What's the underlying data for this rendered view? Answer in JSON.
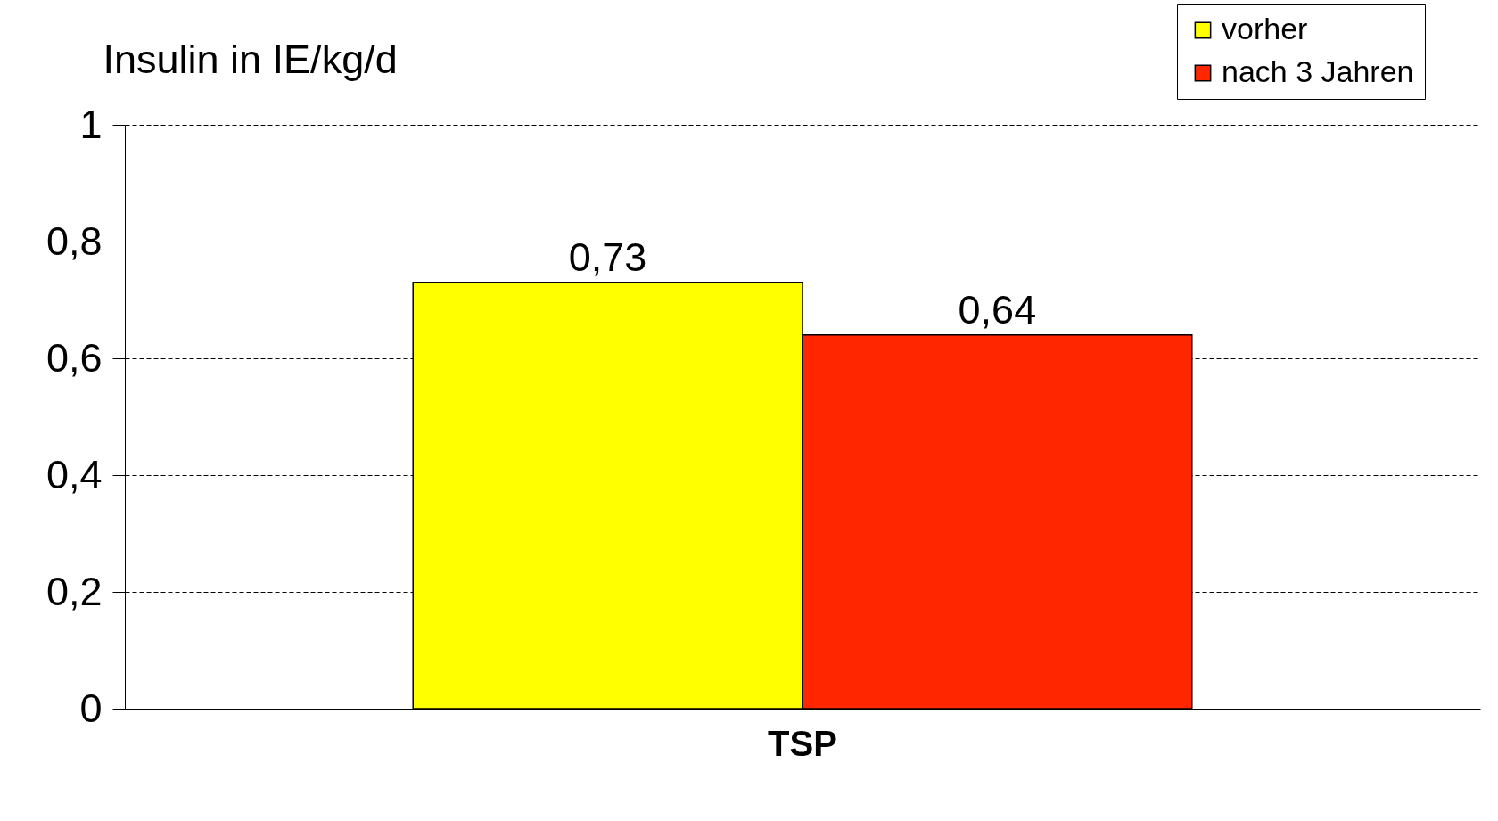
{
  "chart_data": {
    "type": "bar",
    "ylabel": "Insulin in IE/kg/d",
    "categories": [
      "TSP"
    ],
    "series": [
      {
        "name": "vorher",
        "color": "#ffff00",
        "values": [
          0.73
        ],
        "value_labels": [
          "0,73"
        ]
      },
      {
        "name": "nach 3 Jahren",
        "color": "#ff2600",
        "values": [
          0.64
        ],
        "value_labels": [
          "0,64"
        ]
      }
    ],
    "ylim": [
      0,
      1
    ],
    "yticks": [
      0,
      {
        "value": 0.2,
        "label": "0,2"
      },
      {
        "value": 0.4,
        "label": "0,4"
      },
      {
        "value": 0.6,
        "label": "0,6"
      },
      {
        "value": 0.8,
        "label": "0,8"
      },
      1
    ],
    "grid": "y",
    "legend": "top right"
  }
}
